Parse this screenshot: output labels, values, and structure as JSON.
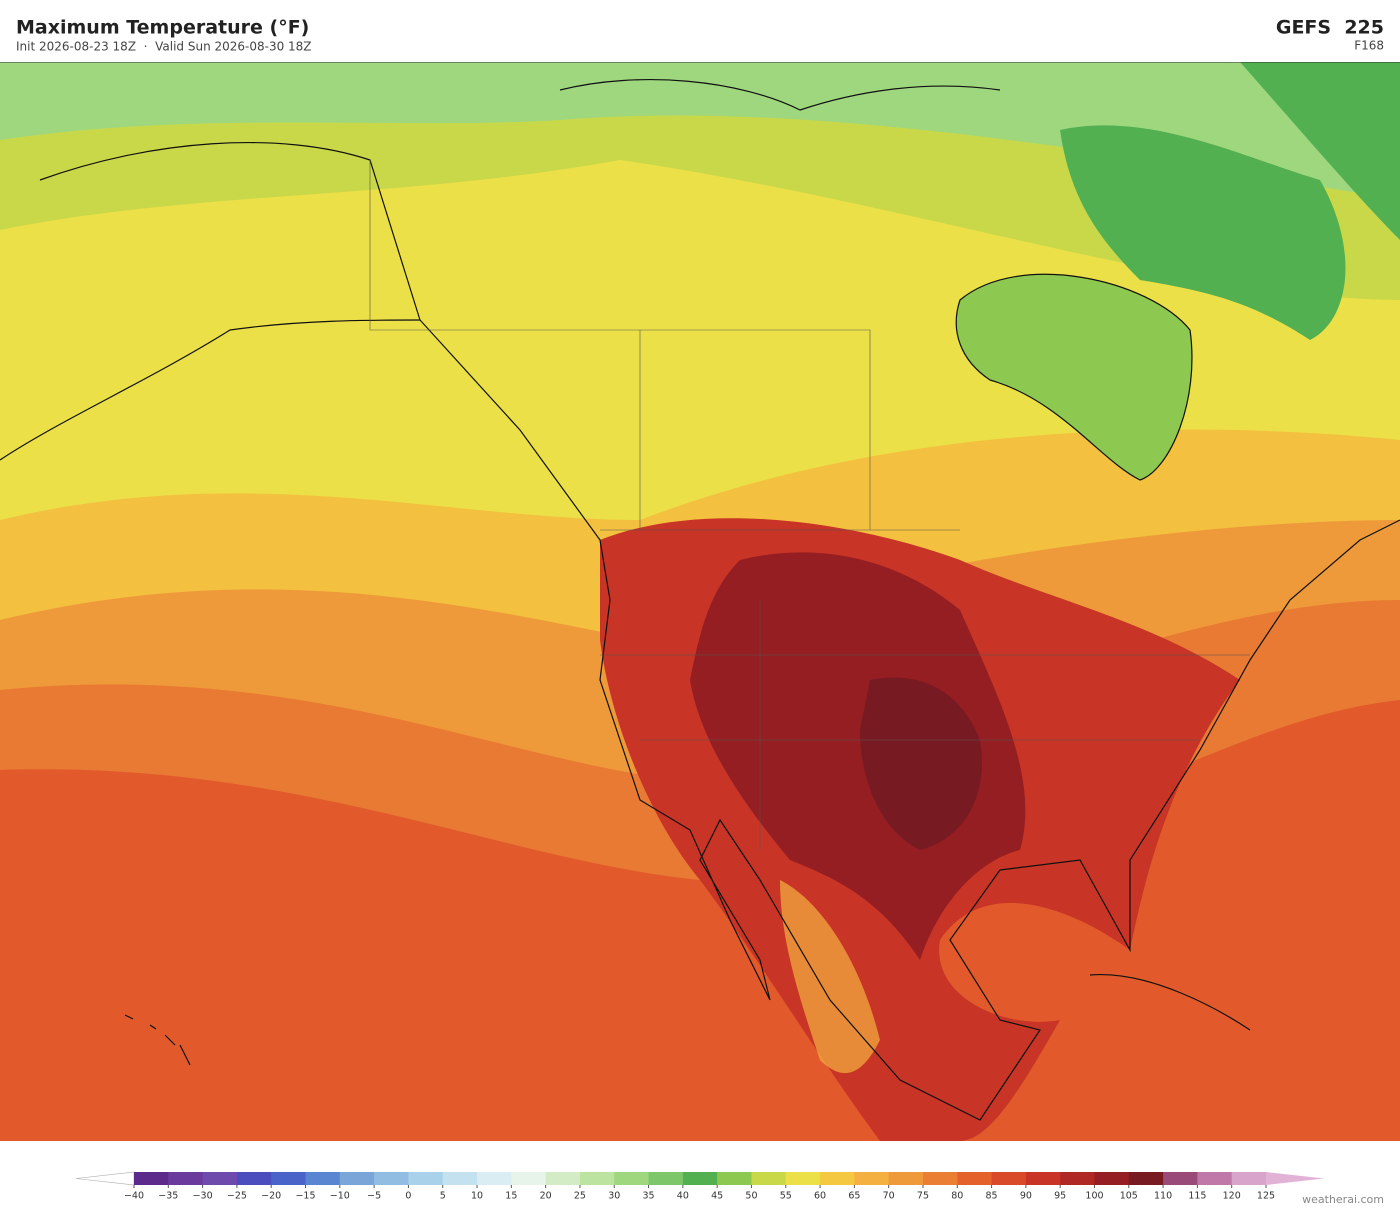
{
  "header": {
    "title": "Maximum Temperature  (°F)",
    "subtitle": "Init 2026-08-23 18Z  ·  Valid Sun 2026-08-30 18Z",
    "model": "GEFS  225",
    "forecast": "F168"
  },
  "colorbar": {
    "ticks": [
      {
        "value": -40,
        "label": "−40"
      },
      {
        "value": -35,
        "label": "−35"
      },
      {
        "value": -30,
        "label": "−30"
      },
      {
        "value": -25,
        "label": "−25"
      },
      {
        "value": -20,
        "label": "−20"
      },
      {
        "value": -15,
        "label": "−15"
      },
      {
        "value": -10,
        "label": "−10"
      },
      {
        "value": -5,
        "label": "−5"
      },
      0,
      5,
      10,
      15,
      20,
      25,
      30,
      35,
      40,
      45,
      50,
      55,
      60,
      65,
      70,
      75,
      80,
      85,
      90,
      95,
      100,
      105,
      110,
      115,
      120,
      125
    ],
    "colors": [
      "#5b2a8a",
      "#6a3b9d",
      "#6e4aac",
      "#4b4dbf",
      "#4a63c9",
      "#5a86d1",
      "#79a5d9",
      "#91bde2",
      "#a9d1ea",
      "#c3e1ef",
      "#d9edf2",
      "#e7f4ea",
      "#d4ecc6",
      "#bde3a0",
      "#9fd77f",
      "#7dc76a",
      "#53b050",
      "#8dc850",
      "#c9d848",
      "#ece048",
      "#f4c840",
      "#f4b040",
      "#ef9a3a",
      "#ea7f34",
      "#e4612c",
      "#d94a2a",
      "#c83426",
      "#b02824",
      "#941e22",
      "#781a22",
      "#9a4a78",
      "#c078a8",
      "#d8a4cc"
    ],
    "under_color": "#ffffff",
    "over_color": "#e2b2d6"
  },
  "footer": {
    "credit": "weatherai.com"
  }
}
